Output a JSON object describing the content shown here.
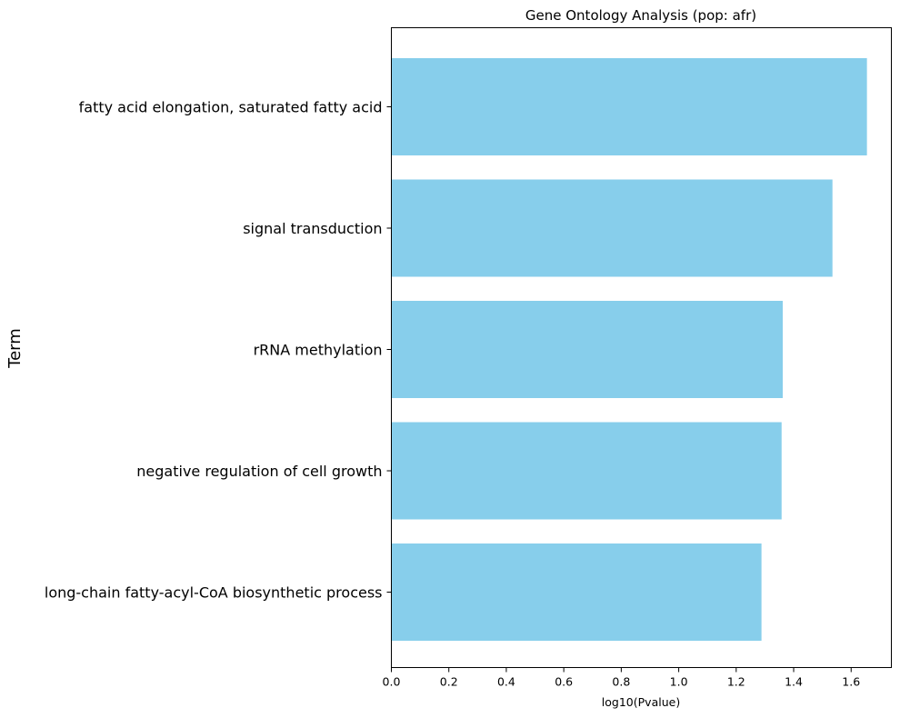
{
  "chart_data": {
    "type": "bar",
    "orientation": "horizontal",
    "title": "Gene Ontology Analysis (pop: afr)",
    "xlabel": "log10(Pvalue)",
    "ylabel": "Term",
    "categories": [
      "fatty acid elongation, saturated fatty acid",
      "signal transduction",
      "rRNA methylation",
      "negative regulation of cell growth",
      "long-chain fatty-acyl-CoA biosynthetic process"
    ],
    "values": [
      1.655,
      1.535,
      1.362,
      1.358,
      1.288
    ],
    "xlim": [
      0,
      1.74
    ],
    "xticks": [
      "0.0",
      "0.2",
      "0.4",
      "0.6",
      "0.8",
      "1.0",
      "1.2",
      "1.4",
      "1.6"
    ],
    "grid": false,
    "legend": "none",
    "bar_color": "#87ceeb"
  }
}
